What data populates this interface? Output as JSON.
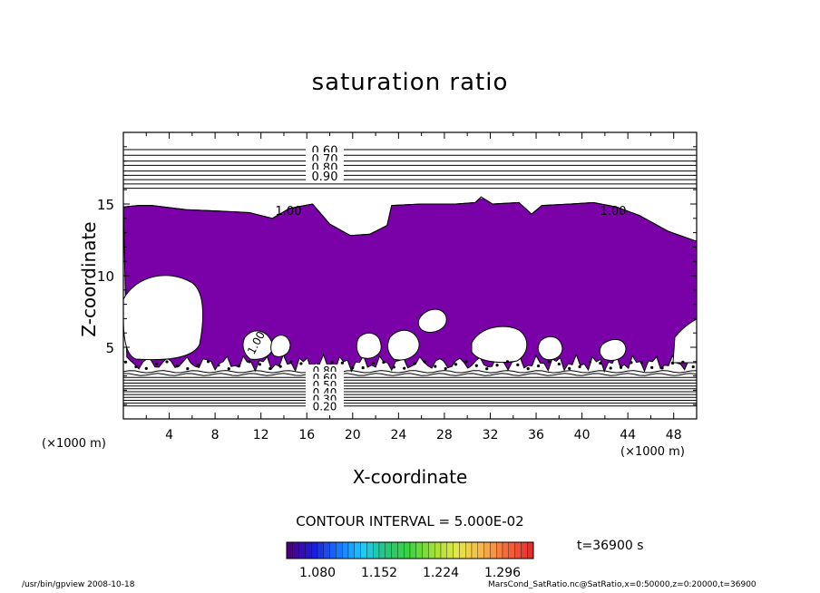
{
  "chart_data": {
    "type": "contour",
    "title": "saturation ratio",
    "xlabel": "X-coordinate",
    "ylabel": "Z-coordinate",
    "xunit": "(×1000 m)",
    "xlim": [
      0,
      50
    ],
    "ylim": [
      0,
      20
    ],
    "xticks": [
      4,
      8,
      12,
      16,
      20,
      24,
      28,
      32,
      36,
      40,
      44,
      48
    ],
    "yticks": [
      5,
      10,
      15
    ],
    "fill_color": "#7a00a8",
    "fill_threshold": 1.0,
    "contour_interval": "CONTOUR INTERVAL = 5.000E-02",
    "upper_contour_labels": [
      "0.60",
      "0.70",
      "0.80",
      "0.90"
    ],
    "upper_contour_levels_z": [
      18.8,
      18.4,
      18.0,
      17.7,
      17.3,
      17.0,
      16.7,
      16.4,
      16.1
    ],
    "lower_contour_labels": [
      "0.80",
      "0.60",
      "0.50",
      "0.40",
      "0.30",
      "0.20"
    ],
    "lower_contour_levels_z": [
      3.3,
      3.1,
      2.9,
      2.7,
      2.5,
      2.3,
      2.1,
      1.9,
      1.7,
      1.5,
      1.3,
      1.1,
      0.9
    ],
    "inline_labels": [
      "1.00",
      "1.00",
      "1.00"
    ],
    "cloud_top_z": [
      [
        0.0,
        14.8
      ],
      [
        1.3,
        14.9
      ],
      [
        2.5,
        14.9
      ],
      [
        5.5,
        14.6
      ],
      [
        8.5,
        14.5
      ],
      [
        11.0,
        14.4
      ],
      [
        13.0,
        14.0
      ],
      [
        14.5,
        14.7
      ],
      [
        16.5,
        15.0
      ],
      [
        18.0,
        13.6
      ],
      [
        19.8,
        12.8
      ],
      [
        21.5,
        12.9
      ],
      [
        23.0,
        13.5
      ],
      [
        23.4,
        14.9
      ],
      [
        26.0,
        15.0
      ],
      [
        29.0,
        15.0
      ],
      [
        30.7,
        15.1
      ],
      [
        31.2,
        15.5
      ],
      [
        32.2,
        15.0
      ],
      [
        34.5,
        15.1
      ],
      [
        35.6,
        14.3
      ],
      [
        36.5,
        14.9
      ],
      [
        39.0,
        15.0
      ],
      [
        41.0,
        15.1
      ],
      [
        43.0,
        14.8
      ],
      [
        45.0,
        14.2
      ],
      [
        47.5,
        13.1
      ],
      [
        50.0,
        12.4
      ]
    ],
    "cloud_base_z": 3.7,
    "colorbar": {
      "colors": [
        "#4b0082",
        "#1c1cdb",
        "#1a73ff",
        "#1ec8ff",
        "#26c67a",
        "#3cd43c",
        "#a2e03a",
        "#e6e64a",
        "#f7b64a",
        "#f56a3c",
        "#e23030"
      ],
      "tick_labels": [
        "1.080",
        "1.152",
        "1.224",
        "1.296"
      ],
      "range": [
        1.044,
        1.332
      ]
    }
  },
  "time_label": "t=36900 s",
  "footer": {
    "left": "/usr/bin/gpview   2008-10-18",
    "right": "MarsCond_SatRatio.nc@SatRatio,x=0:50000,z=0:20000,t=36900"
  }
}
